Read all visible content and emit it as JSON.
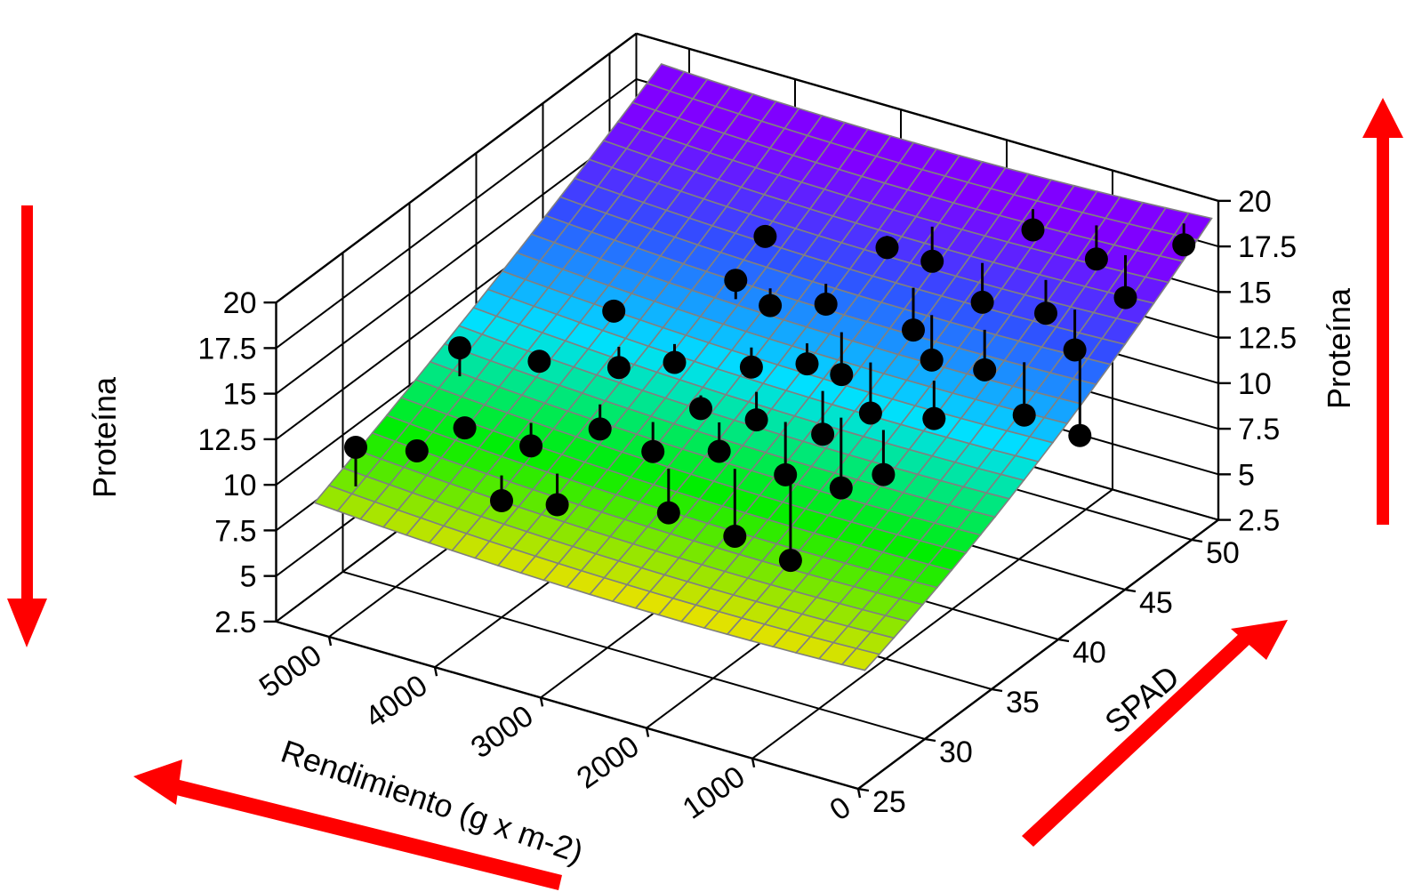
{
  "chart_data": {
    "type": "scatter",
    "view": "3d-surface-with-points",
    "axes": {
      "x": {
        "label": "Rendimiento (g x m-2)",
        "ticks": [
          0,
          1000,
          2000,
          3000,
          4000,
          5000
        ],
        "range": [
          0,
          5500
        ]
      },
      "y": {
        "label": "SPAD",
        "ticks": [
          25,
          30,
          35,
          40,
          45,
          50
        ],
        "range": [
          25,
          52
        ]
      },
      "z": {
        "label": "Proteína",
        "ticks": [
          "2.5",
          "5",
          "7.5",
          "10",
          "12.5",
          "15",
          "17.5",
          "20"
        ],
        "range": [
          2.5,
          20
        ]
      }
    },
    "surface": {
      "type": "fitted-mesh",
      "colormap": [
        "#ffb000",
        "#ffe000",
        "#00ee00",
        "#00e0ff",
        "#3050ff",
        "#8000ff"
      ],
      "mesh_color": "#808080"
    },
    "points": [
      {
        "x": 5000,
        "y": 27,
        "z": 11.8
      },
      {
        "x": 4800,
        "y": 30,
        "z": 10.3
      },
      {
        "x": 4600,
        "y": 32,
        "z": 10.8
      },
      {
        "x": 4900,
        "y": 34,
        "z": 13.6
      },
      {
        "x": 4400,
        "y": 36,
        "z": 12.6
      },
      {
        "x": 4000,
        "y": 30,
        "z": 8.9
      },
      {
        "x": 4100,
        "y": 33,
        "z": 10.1
      },
      {
        "x": 3900,
        "y": 38,
        "z": 12.0
      },
      {
        "x": 4200,
        "y": 40,
        "z": 13.5
      },
      {
        "x": 3600,
        "y": 31,
        "z": 8.8
      },
      {
        "x": 3700,
        "y": 35,
        "z": 10.6
      },
      {
        "x": 3500,
        "y": 39,
        "z": 12.4
      },
      {
        "x": 3300,
        "y": 42,
        "z": 15.6
      },
      {
        "x": 3400,
        "y": 45,
        "z": 16.2
      },
      {
        "x": 3200,
        "y": 35,
        "z": 10.2
      },
      {
        "x": 3000,
        "y": 37,
        "z": 11.8
      },
      {
        "x": 2900,
        "y": 40,
        "z": 12.6
      },
      {
        "x": 3100,
        "y": 43,
        "z": 14.0
      },
      {
        "x": 2800,
        "y": 33,
        "z": 8.6
      },
      {
        "x": 2700,
        "y": 36,
        "z": 10.5
      },
      {
        "x": 2600,
        "y": 38,
        "z": 11.3
      },
      {
        "x": 2500,
        "y": 41,
        "z": 12.9
      },
      {
        "x": 2700,
        "y": 44,
        "z": 14.2
      },
      {
        "x": 2500,
        "y": 47,
        "z": 16.0
      },
      {
        "x": 2300,
        "y": 34,
        "z": 7.6
      },
      {
        "x": 2200,
        "y": 37,
        "z": 9.5
      },
      {
        "x": 2100,
        "y": 39,
        "z": 10.8
      },
      {
        "x": 2300,
        "y": 42,
        "z": 12.1
      },
      {
        "x": 2000,
        "y": 45,
        "z": 13.4
      },
      {
        "x": 2200,
        "y": 48,
        "z": 15.2
      },
      {
        "x": 1900,
        "y": 35,
        "z": 6.4
      },
      {
        "x": 1800,
        "y": 38,
        "z": 8.9
      },
      {
        "x": 1900,
        "y": 41,
        "z": 11.2
      },
      {
        "x": 1700,
        "y": 44,
        "z": 12.8
      },
      {
        "x": 1600,
        "y": 47,
        "z": 14.5
      },
      {
        "x": 1500,
        "y": 50,
        "z": 17.0
      },
      {
        "x": 1400,
        "y": 38,
        "z": 10.3
      },
      {
        "x": 1300,
        "y": 41,
        "z": 11.9
      },
      {
        "x": 1200,
        "y": 44,
        "z": 13.1
      },
      {
        "x": 1000,
        "y": 47,
        "z": 14.9
      },
      {
        "x": 900,
        "y": 50,
        "z": 16.4
      },
      {
        "x": 700,
        "y": 43,
        "z": 12.0
      },
      {
        "x": 600,
        "y": 46,
        "z": 14.1
      },
      {
        "x": 500,
        "y": 49,
        "z": 15.5
      },
      {
        "x": 300,
        "y": 44,
        "z": 11.0
      },
      {
        "x": 200,
        "y": 51,
        "z": 17.8
      }
    ]
  }
}
